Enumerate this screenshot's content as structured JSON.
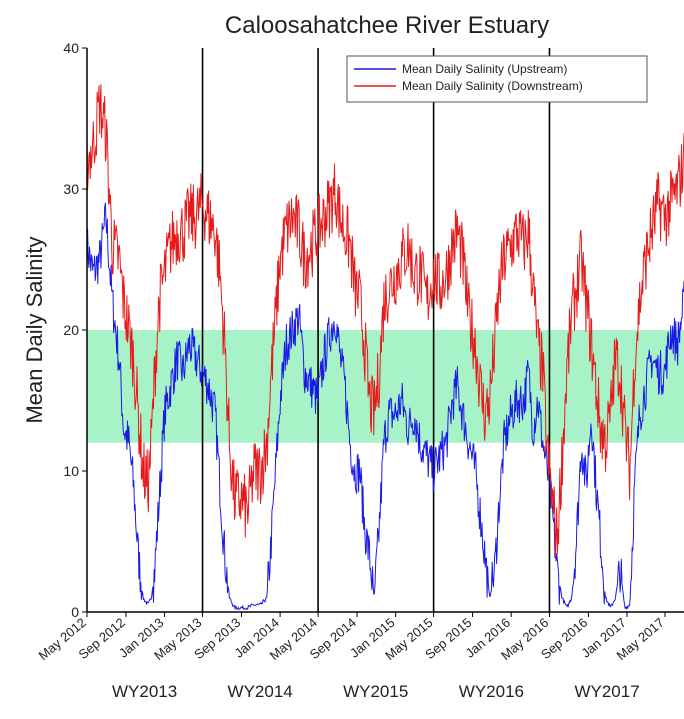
{
  "chart_data": {
    "type": "line",
    "title": "Caloosahatchee River Estuary",
    "xlabel": "",
    "ylabel": "Mean Daily Salinity",
    "ylim": [
      0,
      40
    ],
    "yticks": [
      "0",
      "10",
      "20",
      "30",
      "40"
    ],
    "xlim": [
      "2012-05-01",
      "2017-06-30"
    ],
    "xticks": [
      "May 2012",
      "Sep 2012",
      "Jan 2013",
      "May 2013",
      "Sep 2013",
      "Jan 2014",
      "May 2014",
      "Sep 2014",
      "Jan 2015",
      "May 2015",
      "Sep 2015",
      "Jan 2016",
      "May 2016",
      "Sep 2016",
      "Jan 2017",
      "May 2017"
    ],
    "xtick_dates": [
      "2012-05-01",
      "2012-09-01",
      "2013-01-01",
      "2013-05-01",
      "2013-09-01",
      "2014-01-01",
      "2014-05-01",
      "2014-09-01",
      "2015-01-01",
      "2015-05-01",
      "2015-09-01",
      "2016-01-01",
      "2016-05-01",
      "2016-09-01",
      "2017-01-01",
      "2017-05-01"
    ],
    "water_years": [
      {
        "label": "WY2013",
        "start": "2012-05-01",
        "end": "2013-04-30"
      },
      {
        "label": "WY2014",
        "start": "2013-05-01",
        "end": "2014-04-30"
      },
      {
        "label": "WY2015",
        "start": "2014-05-01",
        "end": "2015-04-30"
      },
      {
        "label": "WY2016",
        "start": "2015-05-01",
        "end": "2016-04-30"
      },
      {
        "label": "WY2017",
        "start": "2016-05-01",
        "end": "2017-04-30"
      }
    ],
    "band": {
      "low": 12,
      "high": 20,
      "color": "#a8f2c8"
    },
    "legend_position": "top-right",
    "grid": false,
    "series": [
      {
        "name": "Mean Daily Salinity (Upstream)",
        "color": "#1a1ae6",
        "x": [
          "2012-05-01",
          "2012-05-20",
          "2012-06-10",
          "2012-06-30",
          "2012-07-20",
          "2012-08-10",
          "2012-08-25",
          "2012-09-10",
          "2012-09-25",
          "2012-10-10",
          "2012-10-25",
          "2012-11-10",
          "2012-11-20",
          "2012-12-01",
          "2012-12-15",
          "2013-01-01",
          "2013-01-20",
          "2013-02-10",
          "2013-03-01",
          "2013-03-20",
          "2013-04-10",
          "2013-04-30",
          "2013-05-20",
          "2013-06-10",
          "2013-06-25",
          "2013-07-10",
          "2013-07-25",
          "2013-08-10",
          "2013-09-01",
          "2013-09-20",
          "2013-10-10",
          "2013-11-01",
          "2013-11-20",
          "2013-12-01",
          "2013-12-15",
          "2014-01-01",
          "2014-01-20",
          "2014-02-10",
          "2014-03-01",
          "2014-03-20",
          "2014-04-10",
          "2014-04-30",
          "2014-05-20",
          "2014-06-10",
          "2014-06-25",
          "2014-07-10",
          "2014-07-25",
          "2014-08-10",
          "2014-08-25",
          "2014-09-10",
          "2014-09-25",
          "2014-10-10",
          "2014-10-25",
          "2014-11-10",
          "2014-11-25",
          "2014-12-10",
          "2015-01-01",
          "2015-01-20",
          "2015-02-10",
          "2015-03-01",
          "2015-03-20",
          "2015-04-10",
          "2015-04-30",
          "2015-05-20",
          "2015-06-10",
          "2015-06-30",
          "2015-07-15",
          "2015-08-01",
          "2015-08-20",
          "2015-09-10",
          "2015-09-25",
          "2015-10-10",
          "2015-10-25",
          "2015-11-10",
          "2015-11-25",
          "2015-12-10",
          "2016-01-01",
          "2016-01-20",
          "2016-02-10",
          "2016-02-25",
          "2016-03-10",
          "2016-03-25",
          "2016-04-10",
          "2016-04-25",
          "2016-05-10",
          "2016-05-25",
          "2016-06-10",
          "2016-06-25",
          "2016-07-10",
          "2016-07-25",
          "2016-08-10",
          "2016-08-25",
          "2016-09-10",
          "2016-09-25",
          "2016-10-10",
          "2016-10-25",
          "2016-11-10",
          "2016-11-25",
          "2016-12-10",
          "2016-12-25",
          "2017-01-10",
          "2017-01-25",
          "2017-02-10",
          "2017-03-01",
          "2017-03-20",
          "2017-04-10",
          "2017-04-30",
          "2017-05-20",
          "2017-06-10",
          "2017-06-30"
        ],
        "values": [
          26,
          24,
          25,
          28,
          22,
          18,
          13,
          12,
          9,
          4,
          1,
          0.5,
          1,
          3,
          8,
          14,
          16,
          18,
          17,
          19,
          18,
          17,
          16,
          14,
          9,
          4,
          1,
          0.3,
          0.3,
          0.3,
          0.5,
          0.5,
          1,
          4,
          9,
          15,
          19,
          20,
          21,
          17,
          16,
          15,
          18,
          20,
          21,
          18,
          16,
          12,
          10,
          10,
          6,
          4,
          1,
          6,
          12,
          14,
          14,
          15,
          13,
          14,
          12,
          11,
          10,
          11,
          12,
          15,
          16,
          14,
          12,
          10,
          7,
          4,
          1,
          3,
          8,
          12,
          14,
          15,
          15,
          17,
          13,
          15,
          12,
          10,
          7,
          3,
          1,
          0.3,
          1,
          5,
          12,
          9,
          14,
          9,
          5,
          1,
          0.3,
          1,
          3,
          0.3,
          0.5,
          9,
          14,
          16,
          18,
          17,
          17,
          20,
          19,
          22
        ]
      },
      {
        "name": "Mean Daily Salinity (Downstream)",
        "color": "#e61a1a",
        "x": [
          "2012-05-01",
          "2012-05-20",
          "2012-06-10",
          "2012-06-30",
          "2012-07-20",
          "2012-08-10",
          "2012-08-25",
          "2012-09-10",
          "2012-09-25",
          "2012-10-10",
          "2012-10-25",
          "2012-11-10",
          "2012-11-20",
          "2012-12-01",
          "2012-12-15",
          "2013-01-01",
          "2013-01-20",
          "2013-02-10",
          "2013-03-01",
          "2013-03-20",
          "2013-04-10",
          "2013-04-30",
          "2013-05-20",
          "2013-06-10",
          "2013-06-25",
          "2013-07-10",
          "2013-07-25",
          "2013-08-10",
          "2013-09-01",
          "2013-09-20",
          "2013-10-10",
          "2013-11-01",
          "2013-11-20",
          "2013-12-01",
          "2013-12-15",
          "2014-01-01",
          "2014-01-20",
          "2014-02-10",
          "2014-03-01",
          "2014-03-20",
          "2014-04-10",
          "2014-04-30",
          "2014-05-20",
          "2014-06-10",
          "2014-06-25",
          "2014-07-10",
          "2014-07-25",
          "2014-08-10",
          "2014-08-25",
          "2014-09-10",
          "2014-09-25",
          "2014-10-10",
          "2014-10-25",
          "2014-11-10",
          "2014-11-25",
          "2014-12-10",
          "2015-01-01",
          "2015-01-20",
          "2015-02-10",
          "2015-03-01",
          "2015-03-20",
          "2015-04-10",
          "2015-04-30",
          "2015-05-20",
          "2015-06-10",
          "2015-06-30",
          "2015-07-15",
          "2015-08-01",
          "2015-08-20",
          "2015-09-10",
          "2015-09-25",
          "2015-10-10",
          "2015-10-25",
          "2015-11-10",
          "2015-11-25",
          "2015-12-10",
          "2016-01-01",
          "2016-01-20",
          "2016-02-10",
          "2016-02-25",
          "2016-03-10",
          "2016-03-25",
          "2016-04-10",
          "2016-04-25",
          "2016-05-10",
          "2016-05-25",
          "2016-06-10",
          "2016-06-25",
          "2016-07-10",
          "2016-07-25",
          "2016-08-10",
          "2016-08-25",
          "2016-09-10",
          "2016-09-25",
          "2016-10-10",
          "2016-10-25",
          "2016-11-10",
          "2016-11-25",
          "2016-12-10",
          "2016-12-25",
          "2017-01-10",
          "2017-01-25",
          "2017-02-10",
          "2017-03-01",
          "2017-03-20",
          "2017-04-10",
          "2017-04-30",
          "2017-05-20",
          "2017-06-10",
          "2017-06-30"
        ],
        "values": [
          32,
          33,
          36,
          34,
          26,
          25,
          22,
          20,
          18,
          14,
          10,
          9,
          12,
          17,
          22,
          24,
          26,
          27,
          27,
          28,
          28,
          29,
          28,
          27,
          24,
          19,
          12,
          8,
          8,
          7,
          10,
          10,
          12,
          16,
          20,
          25,
          27,
          28,
          27,
          25,
          26,
          27,
          28,
          29,
          30,
          28,
          27,
          26,
          23,
          22,
          19,
          15,
          14,
          17,
          22,
          23,
          24,
          25,
          26,
          24,
          24,
          22,
          24,
          23,
          24,
          26,
          27,
          25,
          21,
          19,
          16,
          14,
          15,
          19,
          23,
          25,
          26,
          27,
          26,
          27,
          23,
          19,
          17,
          11,
          8,
          5,
          11,
          17,
          21,
          23,
          25,
          22,
          19,
          16,
          13,
          12,
          14,
          18,
          17,
          13,
          10,
          18,
          22,
          25,
          27,
          29,
          28,
          29,
          30,
          32
        ]
      }
    ]
  }
}
